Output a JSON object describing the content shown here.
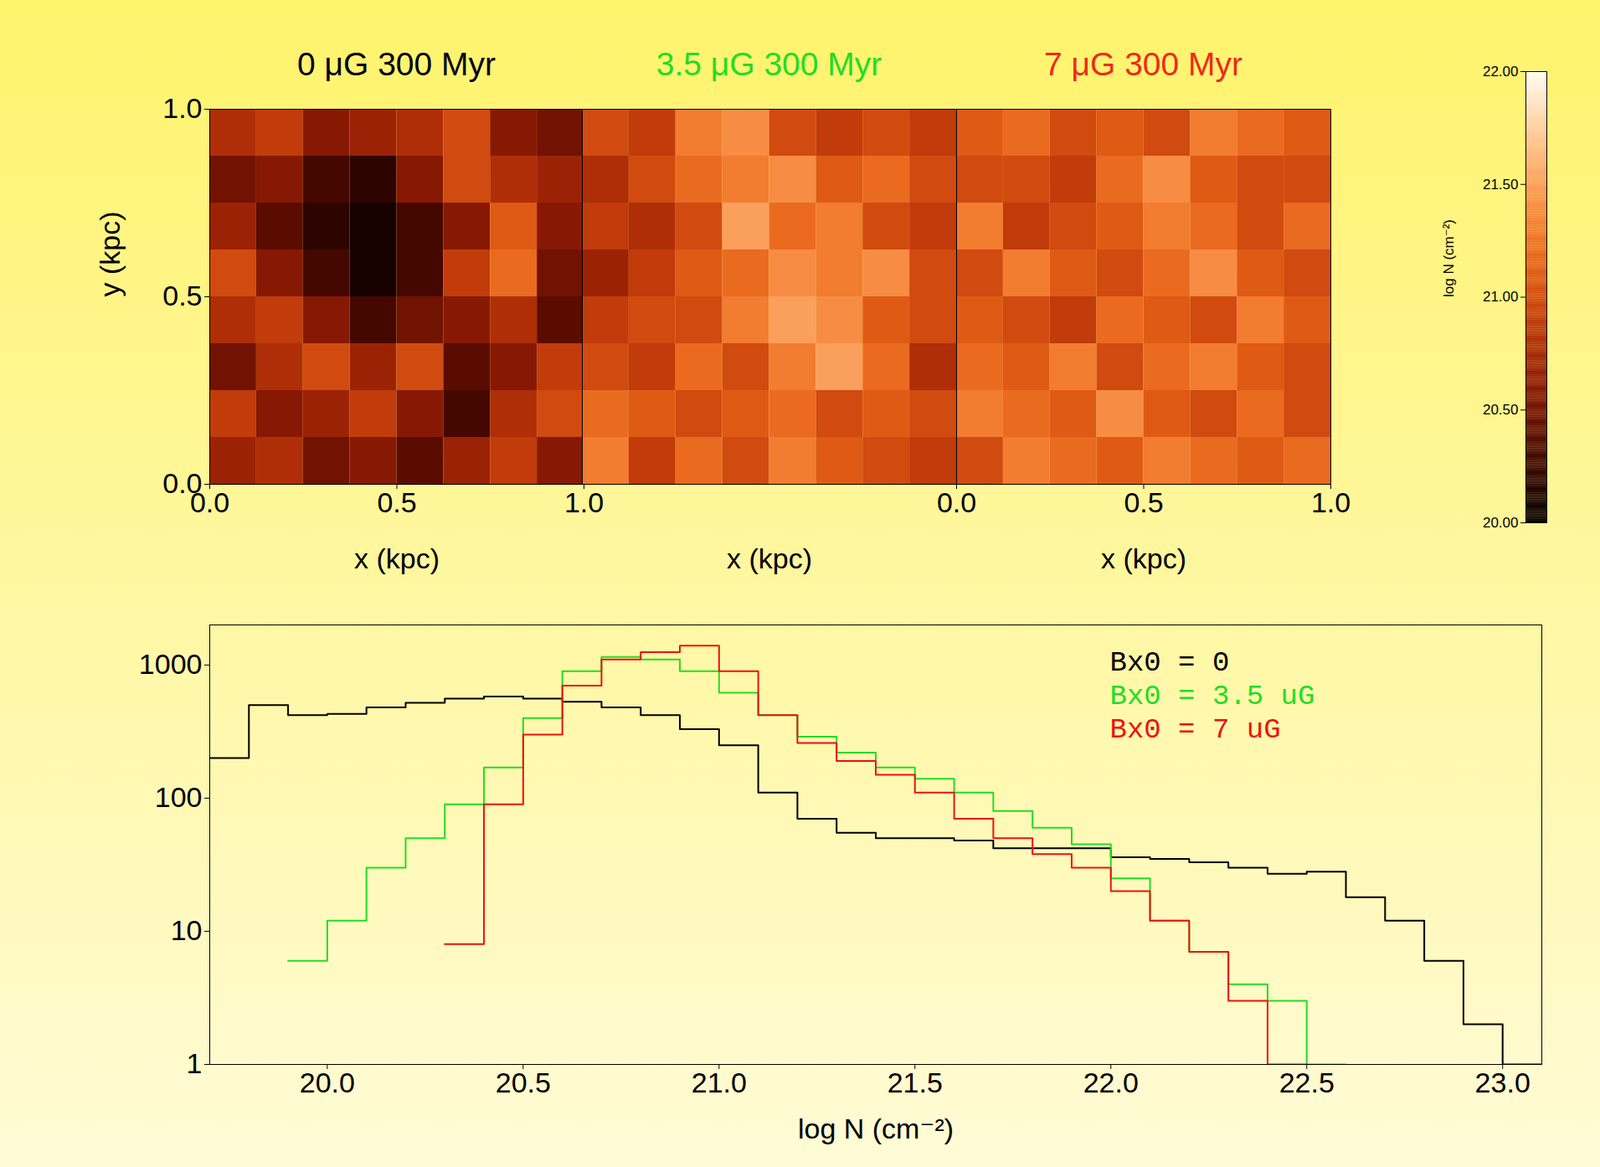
{
  "chart_data": [
    {
      "type": "heatmap",
      "title": "0 μG 300 Myr",
      "color": "#000000",
      "xlabel": "x (kpc)",
      "ylabel": "y (kpc)",
      "xlim": [
        0,
        1
      ],
      "ylim": [
        0,
        1
      ],
      "xticks": [
        {
          "value": 0,
          "label": "0.0"
        },
        {
          "value": 0.5,
          "label": "0.5"
        },
        {
          "value": 1,
          "label": "1.0"
        }
      ],
      "yticks": [
        {
          "value": 0,
          "label": "0.0"
        },
        {
          "value": 0.5,
          "label": "0.5"
        },
        {
          "value": 1,
          "label": "1.0"
        }
      ],
      "cells": [
        [
          20.8,
          20.9,
          20.6,
          20.7,
          20.8,
          21.0,
          20.6,
          20.5
        ],
        [
          20.5,
          20.6,
          20.3,
          20.2,
          20.6,
          21.0,
          20.8,
          20.7
        ],
        [
          20.7,
          20.4,
          20.2,
          20.1,
          20.3,
          20.6,
          21.1,
          20.6
        ],
        [
          21.0,
          20.6,
          20.3,
          20.1,
          20.3,
          20.9,
          21.2,
          20.5
        ],
        [
          20.8,
          20.9,
          20.6,
          20.3,
          20.5,
          20.6,
          20.8,
          20.4
        ],
        [
          20.5,
          20.8,
          21.0,
          20.7,
          21.0,
          20.4,
          20.6,
          20.9
        ],
        [
          20.9,
          20.6,
          20.7,
          20.9,
          20.6,
          20.3,
          20.8,
          21.0
        ],
        [
          20.7,
          20.8,
          20.5,
          20.6,
          20.4,
          20.7,
          20.9,
          20.6
        ]
      ]
    },
    {
      "type": "heatmap",
      "title": "3.5 μG 300 Myr",
      "color": "#22dd22",
      "xlabel": "x (kpc)",
      "xlim": [
        0,
        1
      ],
      "ylim": [
        0,
        1
      ],
      "cells": [
        [
          21.0,
          20.9,
          21.3,
          21.4,
          21.0,
          20.9,
          21.0,
          20.9
        ],
        [
          20.8,
          21.0,
          21.2,
          21.3,
          21.4,
          21.1,
          21.2,
          21.0
        ],
        [
          20.9,
          20.8,
          21.0,
          21.5,
          21.2,
          21.3,
          21.0,
          20.9
        ],
        [
          20.7,
          20.9,
          21.1,
          21.2,
          21.4,
          21.3,
          21.4,
          21.0
        ],
        [
          20.9,
          21.0,
          21.0,
          21.3,
          21.5,
          21.4,
          21.1,
          21.0
        ],
        [
          21.0,
          20.9,
          21.2,
          21.0,
          21.3,
          21.5,
          21.2,
          20.8
        ],
        [
          21.2,
          21.1,
          21.0,
          21.1,
          21.2,
          21.0,
          21.1,
          21.0
        ],
        [
          21.3,
          20.9,
          21.2,
          21.0,
          21.3,
          21.1,
          21.0,
          20.9
        ]
      ]
    },
    {
      "type": "heatmap",
      "title": "7 μG 300 Myr",
      "color": "#ee2a1a",
      "xlabel": "x (kpc)",
      "xlim": [
        0,
        1
      ],
      "ylim": [
        0,
        1
      ],
      "xticks": [
        {
          "value": 0,
          "label": "0.0"
        },
        {
          "value": 0.5,
          "label": "0.5"
        },
        {
          "value": 1,
          "label": "1.0"
        }
      ],
      "cells": [
        [
          21.1,
          21.2,
          21.0,
          21.1,
          21.0,
          21.3,
          21.2,
          21.1
        ],
        [
          21.0,
          21.0,
          20.9,
          21.2,
          21.4,
          21.1,
          21.0,
          21.0
        ],
        [
          21.3,
          20.9,
          21.0,
          21.1,
          21.3,
          21.2,
          21.0,
          21.2
        ],
        [
          21.0,
          21.3,
          21.1,
          21.0,
          21.2,
          21.4,
          21.1,
          21.0
        ],
        [
          21.1,
          21.0,
          20.9,
          21.2,
          21.1,
          21.0,
          21.3,
          21.1
        ],
        [
          21.2,
          21.1,
          21.3,
          21.0,
          21.2,
          21.3,
          21.1,
          21.0
        ],
        [
          21.3,
          21.2,
          21.1,
          21.4,
          21.1,
          21.0,
          21.2,
          21.0
        ],
        [
          21.0,
          21.3,
          21.2,
          21.1,
          21.3,
          21.2,
          21.1,
          21.2
        ]
      ]
    },
    {
      "type": "colorbar",
      "ylabel": "log N (cm⁻²)",
      "ylim": [
        20,
        22
      ],
      "yticks": [
        {
          "value": 20,
          "label": "20.00"
        },
        {
          "value": 20.5,
          "label": "20.50"
        },
        {
          "value": 21,
          "label": "21.00"
        },
        {
          "value": 21.5,
          "label": "21.50"
        },
        {
          "value": 22,
          "label": "22.00"
        }
      ]
    },
    {
      "type": "histogram",
      "xlabel": "log N (cm⁻²)",
      "xlim": [
        19.7,
        23.1
      ],
      "ylim": [
        1,
        2000
      ],
      "log": "y",
      "legend": "top-right",
      "xticks": [
        {
          "value": 20,
          "label": "20.0"
        },
        {
          "value": 20.5,
          "label": "20.5"
        },
        {
          "value": 21,
          "label": "21.0"
        },
        {
          "value": 21.5,
          "label": "21.5"
        },
        {
          "value": 22,
          "label": "22.0"
        },
        {
          "value": 22.5,
          "label": "22.5"
        },
        {
          "value": 23,
          "label": "23.0"
        }
      ],
      "yticks": [
        1,
        10,
        100,
        1000
      ],
      "bins": [
        19.7,
        19.8,
        19.9,
        20.0,
        20.1,
        20.2,
        20.3,
        20.4,
        20.5,
        20.6,
        20.7,
        20.8,
        20.9,
        21.0,
        21.1,
        21.2,
        21.3,
        21.4,
        21.5,
        21.6,
        21.7,
        21.8,
        21.9,
        22.0,
        22.1,
        22.2,
        22.3,
        22.4,
        22.5,
        22.6,
        22.7,
        22.8,
        22.9,
        23.0,
        23.1
      ],
      "series": [
        {
          "name": "Bx0 = 0",
          "color": "#000000",
          "values": [
            200,
            500,
            420,
            430,
            480,
            520,
            560,
            580,
            560,
            530,
            480,
            420,
            330,
            250,
            110,
            70,
            55,
            50,
            50,
            48,
            42,
            42,
            42,
            36,
            35,
            33,
            30,
            27,
            28,
            18,
            12,
            6,
            2,
            1
          ]
        },
        {
          "name": "Bx0 = 3.5 uG",
          "color": "#22dd22",
          "values": [
            null,
            null,
            6,
            12,
            30,
            50,
            90,
            170,
            400,
            900,
            1150,
            1100,
            900,
            620,
            420,
            290,
            220,
            170,
            140,
            110,
            80,
            60,
            45,
            25,
            12,
            7,
            4,
            3,
            1,
            null,
            null,
            null,
            null,
            null
          ]
        },
        {
          "name": "Bx0 = 7 uG",
          "color": "#ee1111",
          "values": [
            null,
            null,
            null,
            null,
            null,
            null,
            8,
            90,
            300,
            700,
            1100,
            1250,
            1400,
            900,
            420,
            260,
            190,
            150,
            110,
            70,
            50,
            38,
            30,
            20,
            12,
            7,
            3,
            1,
            null,
            null,
            null,
            null,
            null,
            null
          ]
        }
      ]
    }
  ]
}
